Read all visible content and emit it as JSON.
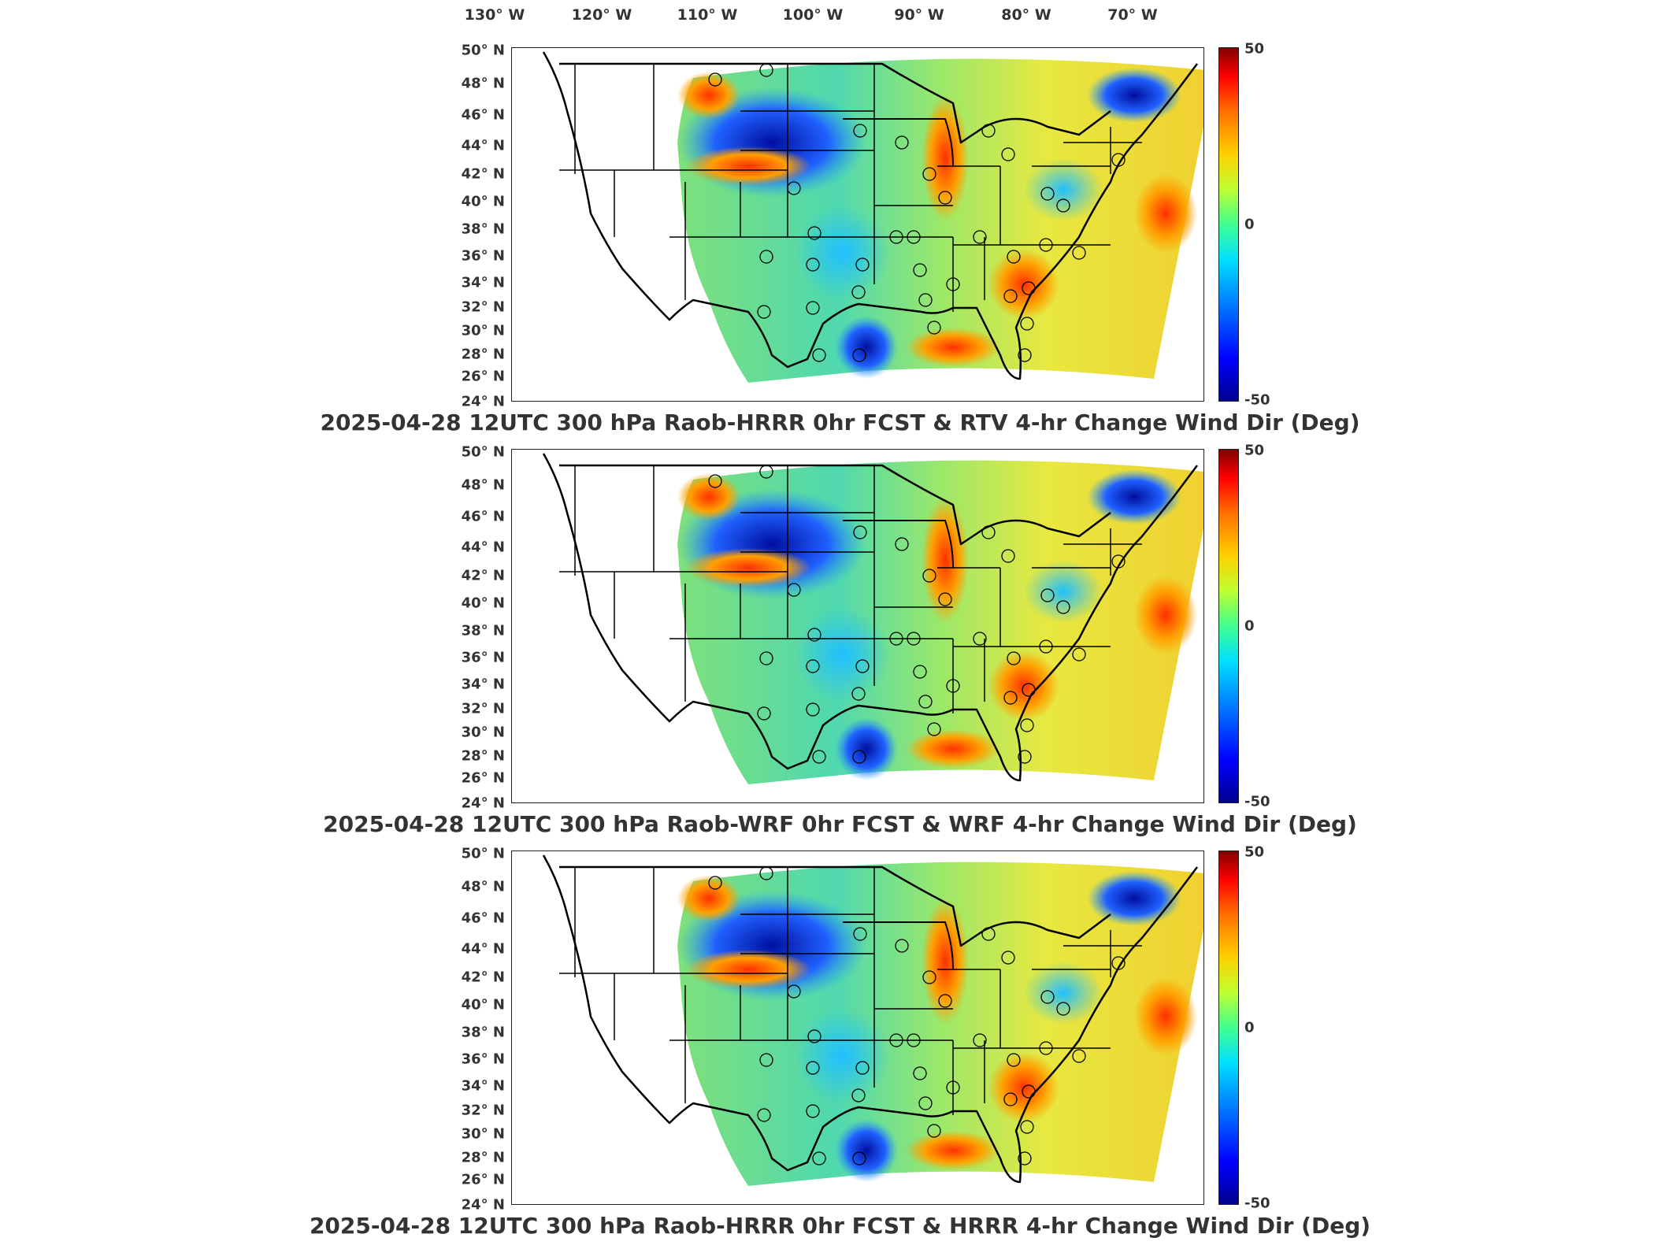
{
  "longitude_labels": [
    "130° W",
    "120° W",
    "110° W",
    "100° W",
    "90° W",
    "80° W",
    "70° W"
  ],
  "latitude_labels": [
    "50° N",
    "48° N",
    "46° N",
    "44° N",
    "42° N",
    "40° N",
    "38° N",
    "36° N",
    "34° N",
    "32° N",
    "30° N",
    "28° N",
    "26° N",
    "24° N"
  ],
  "colorbar": {
    "max_label": "50",
    "mid_label": "0",
    "min_label": "-50",
    "colormap": "jet",
    "low_color": "#00008f",
    "mid_color": "#40ff90",
    "high_color": "#800000"
  },
  "panels": [
    {
      "title": "2025-04-28 12UTC 300 hPa Raob-HRRR 0hr FCST & RTV 4-hr Change Wind Dir (Deg)"
    },
    {
      "title": "2025-04-28 12UTC 300 hPa Raob-WRF 0hr FCST & WRF 4-hr Change Wind Dir (Deg)"
    },
    {
      "title": "2025-04-28 12UTC 300 hPa Raob-HRRR 0hr FCST & HRRR 4-hr Change Wind Dir (Deg)"
    }
  ]
}
